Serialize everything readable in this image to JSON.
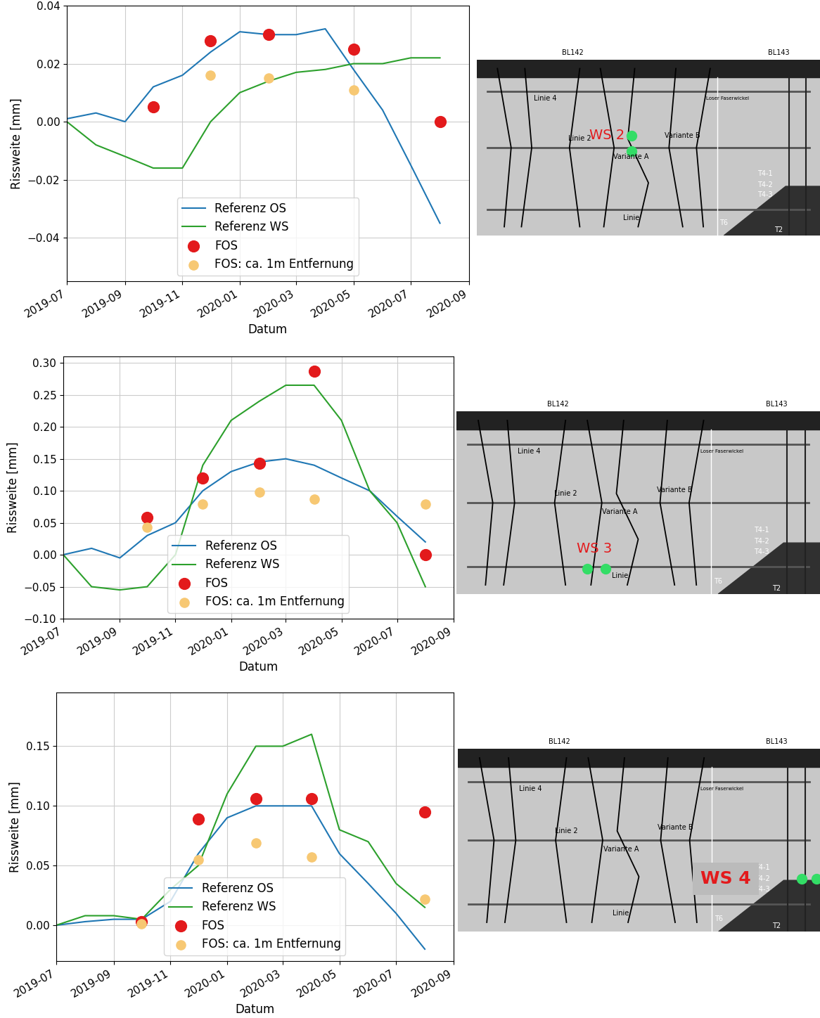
{
  "chart_data": [
    {
      "type": "line",
      "x_label": "Datum",
      "y_label": "Rissweite [mm]",
      "xlim": [
        "2019-07",
        "2020-09"
      ],
      "xticks": [
        "2019-07",
        "2019-09",
        "2019-11",
        "2020-01",
        "2020-03",
        "2020-05",
        "2020-07",
        "2020-09"
      ],
      "ylim": [
        -0.055,
        0.04
      ],
      "yticks": [
        {
          "value": -0.04,
          "label": "−0.04"
        },
        {
          "value": -0.02,
          "label": "−0.02"
        },
        {
          "value": 0.0,
          "label": "0.00"
        },
        {
          "value": 0.02,
          "label": "0.02"
        },
        {
          "value": 0.04,
          "label": "0.04"
        }
      ],
      "grid": true,
      "legend": "lower center",
      "series": [
        {
          "name": "Referenz OS",
          "type": "line",
          "color": "#1f77b4",
          "x": [
            "2019-07",
            "2019-08",
            "2019-09",
            "2019-10",
            "2019-11",
            "2019-12",
            "2020-01",
            "2020-02",
            "2020-03",
            "2020-04",
            "2020-05",
            "2020-06",
            "2020-07",
            "2020-08"
          ],
          "values": [
            0.001,
            0.003,
            0.0,
            0.012,
            0.016,
            0.024,
            0.031,
            0.03,
            0.03,
            0.032,
            0.018,
            0.004,
            -0.015,
            -0.035
          ]
        },
        {
          "name": "Referenz WS",
          "type": "line",
          "color": "#2ca02c",
          "x": [
            "2019-07",
            "2019-08",
            "2019-09",
            "2019-10",
            "2019-11",
            "2019-12",
            "2020-01",
            "2020-02",
            "2020-03",
            "2020-04",
            "2020-05",
            "2020-06",
            "2020-07",
            "2020-08"
          ],
          "values": [
            0.0,
            -0.008,
            -0.012,
            -0.016,
            -0.016,
            0.0,
            0.01,
            0.014,
            0.017,
            0.018,
            0.02,
            0.02,
            0.022,
            0.022
          ]
        },
        {
          "name": "FOS",
          "type": "scatter",
          "color": "#e31a1c",
          "marker": "circle",
          "x": [
            "2019-10",
            "2019-12",
            "2020-02",
            "2020-05",
            "2020-08"
          ],
          "values": [
            0.005,
            0.028,
            0.03,
            0.025,
            0.0
          ]
        },
        {
          "name": "FOS: ca. 1m Entfernung",
          "type": "scatter",
          "color": "#f7c873",
          "marker": "circle",
          "x": [
            "2019-12",
            "2020-02",
            "2020-05"
          ],
          "values": [
            0.016,
            0.015,
            0.011
          ]
        }
      ]
    },
    {
      "type": "line",
      "x_label": "Datum",
      "y_label": "Rissweite [mm]",
      "xlim": [
        "2019-07",
        "2020-09"
      ],
      "xticks": [
        "2019-07",
        "2019-09",
        "2019-11",
        "2020-01",
        "2020-03",
        "2020-05",
        "2020-07",
        "2020-09"
      ],
      "ylim": [
        -0.1,
        0.31
      ],
      "yticks": [
        {
          "value": -0.1,
          "label": "−0.10"
        },
        {
          "value": -0.05,
          "label": "−0.05"
        },
        {
          "value": 0.0,
          "label": "0.00"
        },
        {
          "value": 0.05,
          "label": "0.05"
        },
        {
          "value": 0.1,
          "label": "0.10"
        },
        {
          "value": 0.15,
          "label": "0.15"
        },
        {
          "value": 0.2,
          "label": "0.20"
        },
        {
          "value": 0.25,
          "label": "0.25"
        },
        {
          "value": 0.3,
          "label": "0.30"
        }
      ],
      "grid": true,
      "legend": "lower center",
      "series": [
        {
          "name": "Referenz OS",
          "type": "line",
          "color": "#1f77b4",
          "x": [
            "2019-07",
            "2019-08",
            "2019-09",
            "2019-10",
            "2019-11",
            "2019-12",
            "2020-01",
            "2020-02",
            "2020-03",
            "2020-04",
            "2020-05",
            "2020-06",
            "2020-07",
            "2020-08"
          ],
          "values": [
            0.0,
            0.01,
            -0.005,
            0.03,
            0.05,
            0.1,
            0.13,
            0.145,
            0.15,
            0.14,
            0.12,
            0.1,
            0.06,
            0.02
          ]
        },
        {
          "name": "Referenz WS",
          "type": "line",
          "color": "#2ca02c",
          "x": [
            "2019-07",
            "2019-08",
            "2019-09",
            "2019-10",
            "2019-11",
            "2019-12",
            "2020-01",
            "2020-02",
            "2020-03",
            "2020-04",
            "2020-05",
            "2020-06",
            "2020-07",
            "2020-08"
          ],
          "values": [
            0.0,
            -0.05,
            -0.055,
            -0.05,
            0.0,
            0.14,
            0.21,
            0.24,
            0.265,
            0.265,
            0.21,
            0.1,
            0.05,
            -0.05
          ]
        },
        {
          "name": "FOS",
          "type": "scatter",
          "color": "#e31a1c",
          "marker": "circle",
          "x": [
            "2019-10",
            "2019-12",
            "2020-02",
            "2020-04",
            "2020-08"
          ],
          "values": [
            0.058,
            0.12,
            0.143,
            0.287,
            0.0
          ]
        },
        {
          "name": "FOS: ca. 1m Entfernung",
          "type": "scatter",
          "color": "#f7c873",
          "marker": "circle",
          "x": [
            "2019-10",
            "2019-12",
            "2020-02",
            "2020-04",
            "2020-08"
          ],
          "values": [
            0.043,
            0.079,
            0.098,
            0.087,
            0.079
          ]
        }
      ]
    },
    {
      "type": "line",
      "x_label": "Datum",
      "y_label": "Rissweite [mm]",
      "xlim": [
        "2019-07",
        "2020-09"
      ],
      "xticks": [
        "2019-07",
        "2019-09",
        "2019-11",
        "2020-01",
        "2020-03",
        "2020-05",
        "2020-07",
        "2020-09"
      ],
      "ylim": [
        -0.03,
        0.195
      ],
      "yticks": [
        {
          "value": 0.0,
          "label": "0.00"
        },
        {
          "value": 0.05,
          "label": "0.05"
        },
        {
          "value": 0.1,
          "label": "0.10"
        },
        {
          "value": 0.15,
          "label": "0.15"
        }
      ],
      "grid": true,
      "legend": "lower center",
      "series": [
        {
          "name": "Referenz OS",
          "type": "line",
          "color": "#1f77b4",
          "x": [
            "2019-07",
            "2019-08",
            "2019-09",
            "2019-10",
            "2019-11",
            "2019-12",
            "2020-01",
            "2020-02",
            "2020-03",
            "2020-04",
            "2020-05",
            "2020-06",
            "2020-07",
            "2020-08"
          ],
          "values": [
            0.0,
            0.003,
            0.005,
            0.005,
            0.02,
            0.06,
            0.09,
            0.1,
            0.1,
            0.1,
            0.06,
            0.035,
            0.01,
            -0.02
          ]
        },
        {
          "name": "Referenz WS",
          "type": "line",
          "color": "#2ca02c",
          "x": [
            "2019-07",
            "2019-08",
            "2019-09",
            "2019-10",
            "2019-11",
            "2019-12",
            "2020-01",
            "2020-02",
            "2020-03",
            "2020-04",
            "2020-05",
            "2020-06",
            "2020-07",
            "2020-08"
          ],
          "values": [
            0.0,
            0.008,
            0.008,
            0.005,
            0.03,
            0.05,
            0.11,
            0.15,
            0.15,
            0.16,
            0.08,
            0.07,
            0.035,
            0.015
          ]
        },
        {
          "name": "FOS",
          "type": "scatter",
          "color": "#e31a1c",
          "marker": "circle",
          "x": [
            "2019-10",
            "2019-12",
            "2020-02",
            "2020-04",
            "2020-08"
          ],
          "values": [
            0.003,
            0.089,
            0.106,
            0.106,
            0.095
          ]
        },
        {
          "name": "FOS: ca. 1m Entfernung",
          "type": "scatter",
          "color": "#f7c873",
          "marker": "circle",
          "x": [
            "2019-10",
            "2019-12",
            "2020-02",
            "2020-04",
            "2020-08"
          ],
          "values": [
            0.001,
            0.055,
            0.069,
            0.057,
            0.022
          ]
        }
      ]
    }
  ],
  "crack_map": {
    "labels": {
      "bl_left": "BL142",
      "bl_right": "BL143",
      "line4": "Linie 4",
      "line2": "Linie 2",
      "var_b": "Variante B",
      "var_a": "Variante A",
      "line": "Linie",
      "t6": "T6",
      "t2": "T2",
      "t41": "T4-1",
      "t42": "T4-2",
      "t43": "T4-3",
      "loose": "Loser Faserwickel"
    },
    "locations": [
      "WS 2",
      "WS 3",
      "WS 4"
    ]
  }
}
